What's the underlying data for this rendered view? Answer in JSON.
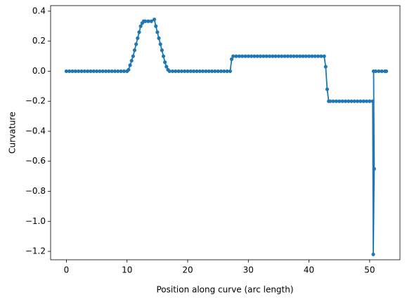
{
  "chart_data": {
    "type": "line",
    "x_label": "Position along curve (arc length)",
    "y_label": "Curvature",
    "color": "#1f77b4",
    "x": [
      0,
      0.5,
      1,
      1.5,
      2,
      2.5,
      3,
      3.5,
      4,
      4.5,
      5,
      5.5,
      6,
      6.5,
      7,
      7.5,
      8,
      8.5,
      9,
      9.5,
      10,
      10.25,
      10.5,
      10.75,
      11,
      11.25,
      11.5,
      11.75,
      12,
      12.25,
      12.5,
      12.75,
      13,
      13.5,
      14,
      14.5,
      14.75,
      15,
      15.25,
      15.5,
      15.75,
      16,
      16.25,
      16.5,
      16.75,
      17,
      17.5,
      18,
      18.5,
      19,
      19.5,
      20,
      20.5,
      21,
      21.5,
      22,
      22.5,
      23,
      23.5,
      24,
      24.5,
      25,
      25.5,
      26,
      26.5,
      27,
      27.25,
      27.5,
      28,
      28.5,
      29,
      29.5,
      30,
      30.5,
      31,
      31.5,
      32,
      32.5,
      33,
      33.5,
      34,
      34.5,
      35,
      35.5,
      36,
      36.5,
      37,
      37.5,
      38,
      38.5,
      39,
      39.5,
      40,
      40.5,
      41,
      41.5,
      42,
      42.5,
      42.75,
      43,
      43.25,
      43.5,
      44,
      44.5,
      45,
      45.5,
      46,
      46.5,
      47,
      47.5,
      48,
      48.5,
      49,
      49.5,
      50,
      50.5,
      50.6,
      50.75,
      50.65,
      51,
      51.5,
      52,
      52.5,
      52.75
    ],
    "values": [
      0,
      0,
      0,
      0,
      0,
      0,
      0,
      0,
      0,
      0,
      0,
      0,
      0,
      0,
      0,
      0,
      0,
      0,
      0,
      0,
      0,
      0.01,
      0.04,
      0.07,
      0.1,
      0.14,
      0.18,
      0.22,
      0.26,
      0.3,
      0.32,
      0.333,
      0.333,
      0.333,
      0.333,
      0.345,
      0.3,
      0.26,
      0.22,
      0.18,
      0.14,
      0.1,
      0.06,
      0.03,
      0.01,
      0,
      0,
      0,
      0,
      0,
      0,
      0,
      0,
      0,
      0,
      0,
      0,
      0,
      0,
      0,
      0,
      0,
      0,
      0,
      0,
      0,
      0.08,
      0.1,
      0.1,
      0.1,
      0.1,
      0.1,
      0.1,
      0.1,
      0.1,
      0.1,
      0.1,
      0.1,
      0.1,
      0.1,
      0.1,
      0.1,
      0.1,
      0.1,
      0.1,
      0.1,
      0.1,
      0.1,
      0.1,
      0.1,
      0.1,
      0.1,
      0.1,
      0.1,
      0.1,
      0.1,
      0.1,
      0.1,
      0.03,
      -0.12,
      -0.2,
      -0.2,
      -0.2,
      -0.2,
      -0.2,
      -0.2,
      -0.2,
      -0.2,
      -0.2,
      -0.2,
      -0.2,
      -0.2,
      -0.2,
      -0.2,
      -0.2,
      -0.2,
      -1.22,
      -0.65,
      0,
      0,
      0,
      0,
      0,
      0
    ],
    "xlim": [
      -2.6,
      55
    ],
    "ylim": [
      -1.256,
      0.437
    ],
    "xticks": [
      0,
      10,
      20,
      30,
      40,
      50
    ],
    "yticks": [
      {
        "value": -1.2,
        "label": "−1.2"
      },
      {
        "value": -1.0,
        "label": "−1.0"
      },
      {
        "value": -0.8,
        "label": "−0.8"
      },
      {
        "value": -0.6,
        "label": "−0.6"
      },
      {
        "value": -0.4,
        "label": "−0.4"
      },
      {
        "value": -0.2,
        "label": "−0.2"
      },
      {
        "value": 0,
        "label": "0.0"
      },
      0.2,
      0.4
    ]
  }
}
